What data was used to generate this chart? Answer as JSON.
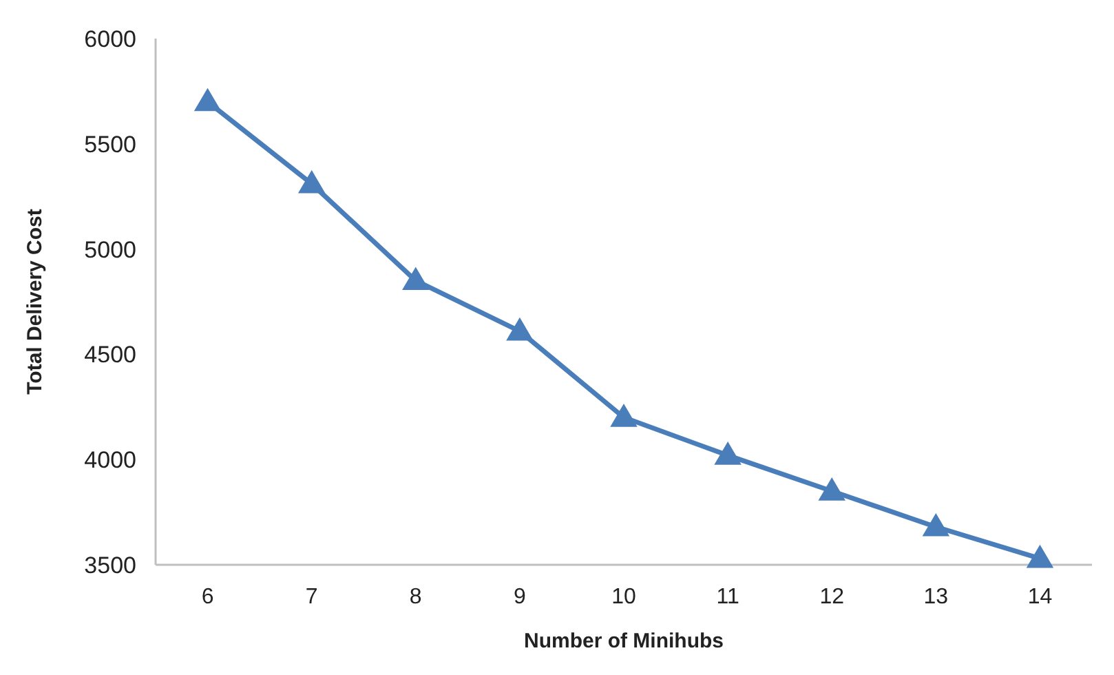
{
  "chart_data": {
    "type": "line",
    "xlabel": "Number of Minihubs",
    "ylabel": "Total Delivery Cost",
    "categories": [
      "6",
      "7",
      "8",
      "9",
      "10",
      "11",
      "12",
      "13",
      "14"
    ],
    "series": [
      {
        "color": "#4a7ebb",
        "values": [
          5700,
          5310,
          4850,
          4610,
          4200,
          4020,
          3850,
          3680,
          3530
        ]
      }
    ],
    "ylim": [
      3500,
      6000
    ],
    "yticks": [
      3500,
      4000,
      4500,
      5000,
      5500,
      6000
    ],
    "grid": false,
    "marker": "triangle",
    "line_style": "solid"
  }
}
